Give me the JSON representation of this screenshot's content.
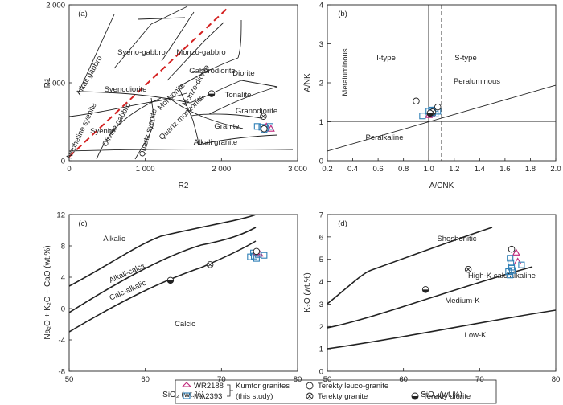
{
  "chart_data": [
    {
      "panel": "(a)",
      "type": "scatter",
      "xlabel": "R2",
      "ylabel": "R1",
      "xlim": [
        0,
        3000
      ],
      "ylim": [
        0,
        2000
      ],
      "x_ticks": [
        "0",
        "1 000",
        "2 000",
        "3 000"
      ],
      "y_ticks": [
        "0",
        "1 000",
        "2 000"
      ],
      "field_labels": [
        "Alkali gabbro",
        "Syeno-gabbro",
        "Olivine gabbro",
        "Monzo-gabbro",
        "Gabbrodiorite",
        "Syenodiorite",
        "Monzonite",
        "Monzo-diorite",
        "Diorite",
        "Tonalite",
        "Nepheline syenite",
        "Quartz monzonite",
        "Granodiorite",
        "Syenite",
        "Quartz syenite",
        "Granite",
        "Alkali granite"
      ],
      "trend_line": [
        [
          0,
          50
        ],
        [
          2080,
          2000
        ]
      ],
      "series": [
        {
          "name": "WR2188",
          "values": [
            [
              2590,
              440
            ],
            [
              2650,
              410
            ]
          ]
        },
        {
          "name": "MA2393",
          "values": [
            [
              2470,
              440
            ],
            [
              2530,
              430
            ],
            [
              2580,
              420
            ],
            [
              2640,
              440
            ],
            [
              2560,
              400
            ]
          ]
        },
        {
          "name": "Terekty leuco-granite",
          "values": [
            [
              2560,
              410
            ]
          ]
        },
        {
          "name": "Terekty granite",
          "values": [
            [
              2550,
              570
            ]
          ]
        },
        {
          "name": "Terekty diorite",
          "values": [
            [
              1870,
              860
            ]
          ]
        }
      ]
    },
    {
      "panel": "(b)",
      "type": "scatter",
      "xlabel": "A/CNK",
      "ylabel": "A/NK",
      "xlim": [
        0.2,
        2.0
      ],
      "ylim": [
        0,
        4
      ],
      "x_ticks": [
        "0.2",
        "0.4",
        "0.6",
        "0.8",
        "1.0",
        "1.2",
        "1.4",
        "1.6",
        "1.8",
        "2.0"
      ],
      "y_ticks": [
        "0",
        "1",
        "2",
        "3",
        "4"
      ],
      "field_labels": [
        "Metaluminous",
        "I-type",
        "S-type",
        "Peraluminous",
        "Peralkaline"
      ],
      "series": [
        {
          "name": "WR2188",
          "values": [
            [
              1.0,
              1.17
            ],
            [
              1.02,
              1.2
            ]
          ]
        },
        {
          "name": "MA2393",
          "values": [
            [
              0.95,
              1.15
            ],
            [
              1.0,
              1.27
            ],
            [
              1.02,
              1.3
            ],
            [
              1.05,
              1.3
            ],
            [
              1.07,
              1.27
            ],
            [
              1.03,
              1.24
            ],
            [
              1.05,
              1.2
            ]
          ]
        },
        {
          "name": "Terekty leuco-granite",
          "values": [
            [
              0.9,
              1.53
            ],
            [
              1.07,
              1.38
            ]
          ]
        },
        {
          "name": "Terekty granite",
          "values": [
            [
              1.03,
              1.25
            ]
          ]
        },
        {
          "name": "Terekty diorite",
          "values": [
            [
              1.01,
              1.22
            ]
          ]
        }
      ]
    },
    {
      "panel": "(c)",
      "type": "scatter",
      "xlabel": "SiO₂ (wt.%)",
      "ylabel": "Na₂O + K₂O − CaO (wt.%)",
      "xlim": [
        50,
        80
      ],
      "ylim": [
        -8,
        12
      ],
      "x_ticks": [
        "50",
        "60",
        "70",
        "80"
      ],
      "y_ticks": [
        "-8",
        "-4",
        "0",
        "4",
        "8",
        "12"
      ],
      "field_labels": [
        "Alkalic",
        "Alkali-calcic",
        "Calc-alkalic",
        "Calcic"
      ],
      "series": [
        {
          "name": "WR2188",
          "values": [
            [
              74.6,
              7.2
            ],
            [
              75.0,
              7.0
            ]
          ]
        },
        {
          "name": "MA2393",
          "values": [
            [
              73.8,
              6.6
            ],
            [
              74.3,
              6.7
            ],
            [
              74.8,
              6.9
            ],
            [
              75.6,
              6.8
            ],
            [
              74.2,
              7.1
            ],
            [
              74.6,
              6.4
            ]
          ]
        },
        {
          "name": "Terekty leuco-granite",
          "values": [
            [
              74.6,
              7.3
            ]
          ]
        },
        {
          "name": "Terekty granite",
          "values": [
            [
              68.5,
              5.6
            ]
          ]
        },
        {
          "name": "Terekty diorite",
          "values": [
            [
              63.3,
              3.6
            ]
          ]
        }
      ]
    },
    {
      "panel": "(d)",
      "type": "scatter",
      "xlabel": "SiO₂ (wt.%)",
      "ylabel": "K₂O (wt.%)",
      "xlim": [
        50,
        80
      ],
      "ylim": [
        0,
        7
      ],
      "x_ticks": [
        "50",
        "60",
        "70",
        "80"
      ],
      "y_ticks": [
        "0",
        "1",
        "2",
        "3",
        "4",
        "5",
        "6",
        "7"
      ],
      "field_labels": [
        "Shoshonitic",
        "High-K calc-alkaline",
        "Medium-K",
        "Low-K"
      ],
      "series": [
        {
          "name": "WR2188",
          "values": [
            [
              74.8,
              5.3
            ],
            [
              75.0,
              4.9
            ]
          ]
        },
        {
          "name": "MA2393",
          "values": [
            [
              74.0,
              5.05
            ],
            [
              74.1,
              4.85
            ],
            [
              74.2,
              4.65
            ],
            [
              74.3,
              4.5
            ],
            [
              75.5,
              4.75
            ],
            [
              73.8,
              4.45
            ],
            [
              74.0,
              4.3
            ]
          ]
        },
        {
          "name": "Terekty leuco-granite",
          "values": [
            [
              74.2,
              5.45
            ]
          ]
        },
        {
          "name": "Terekty granite",
          "values": [
            [
              68.5,
              4.55
            ]
          ]
        },
        {
          "name": "Terekty diorite",
          "values": [
            [
              62.9,
              3.65
            ]
          ]
        }
      ]
    }
  ],
  "legend": {
    "wr": "WR2188",
    "ma": "MA2393",
    "group_label": "Kumtor granites",
    "group_note": "(this study)",
    "leuco": "Terekty leuco-granite",
    "granite": "Terekty granite",
    "diorite": "Terekty diorite"
  },
  "colors": {
    "wr": "#c0277a",
    "ma": "#2f7fb6",
    "red_dash": "#d42020",
    "ink": "#222222"
  }
}
